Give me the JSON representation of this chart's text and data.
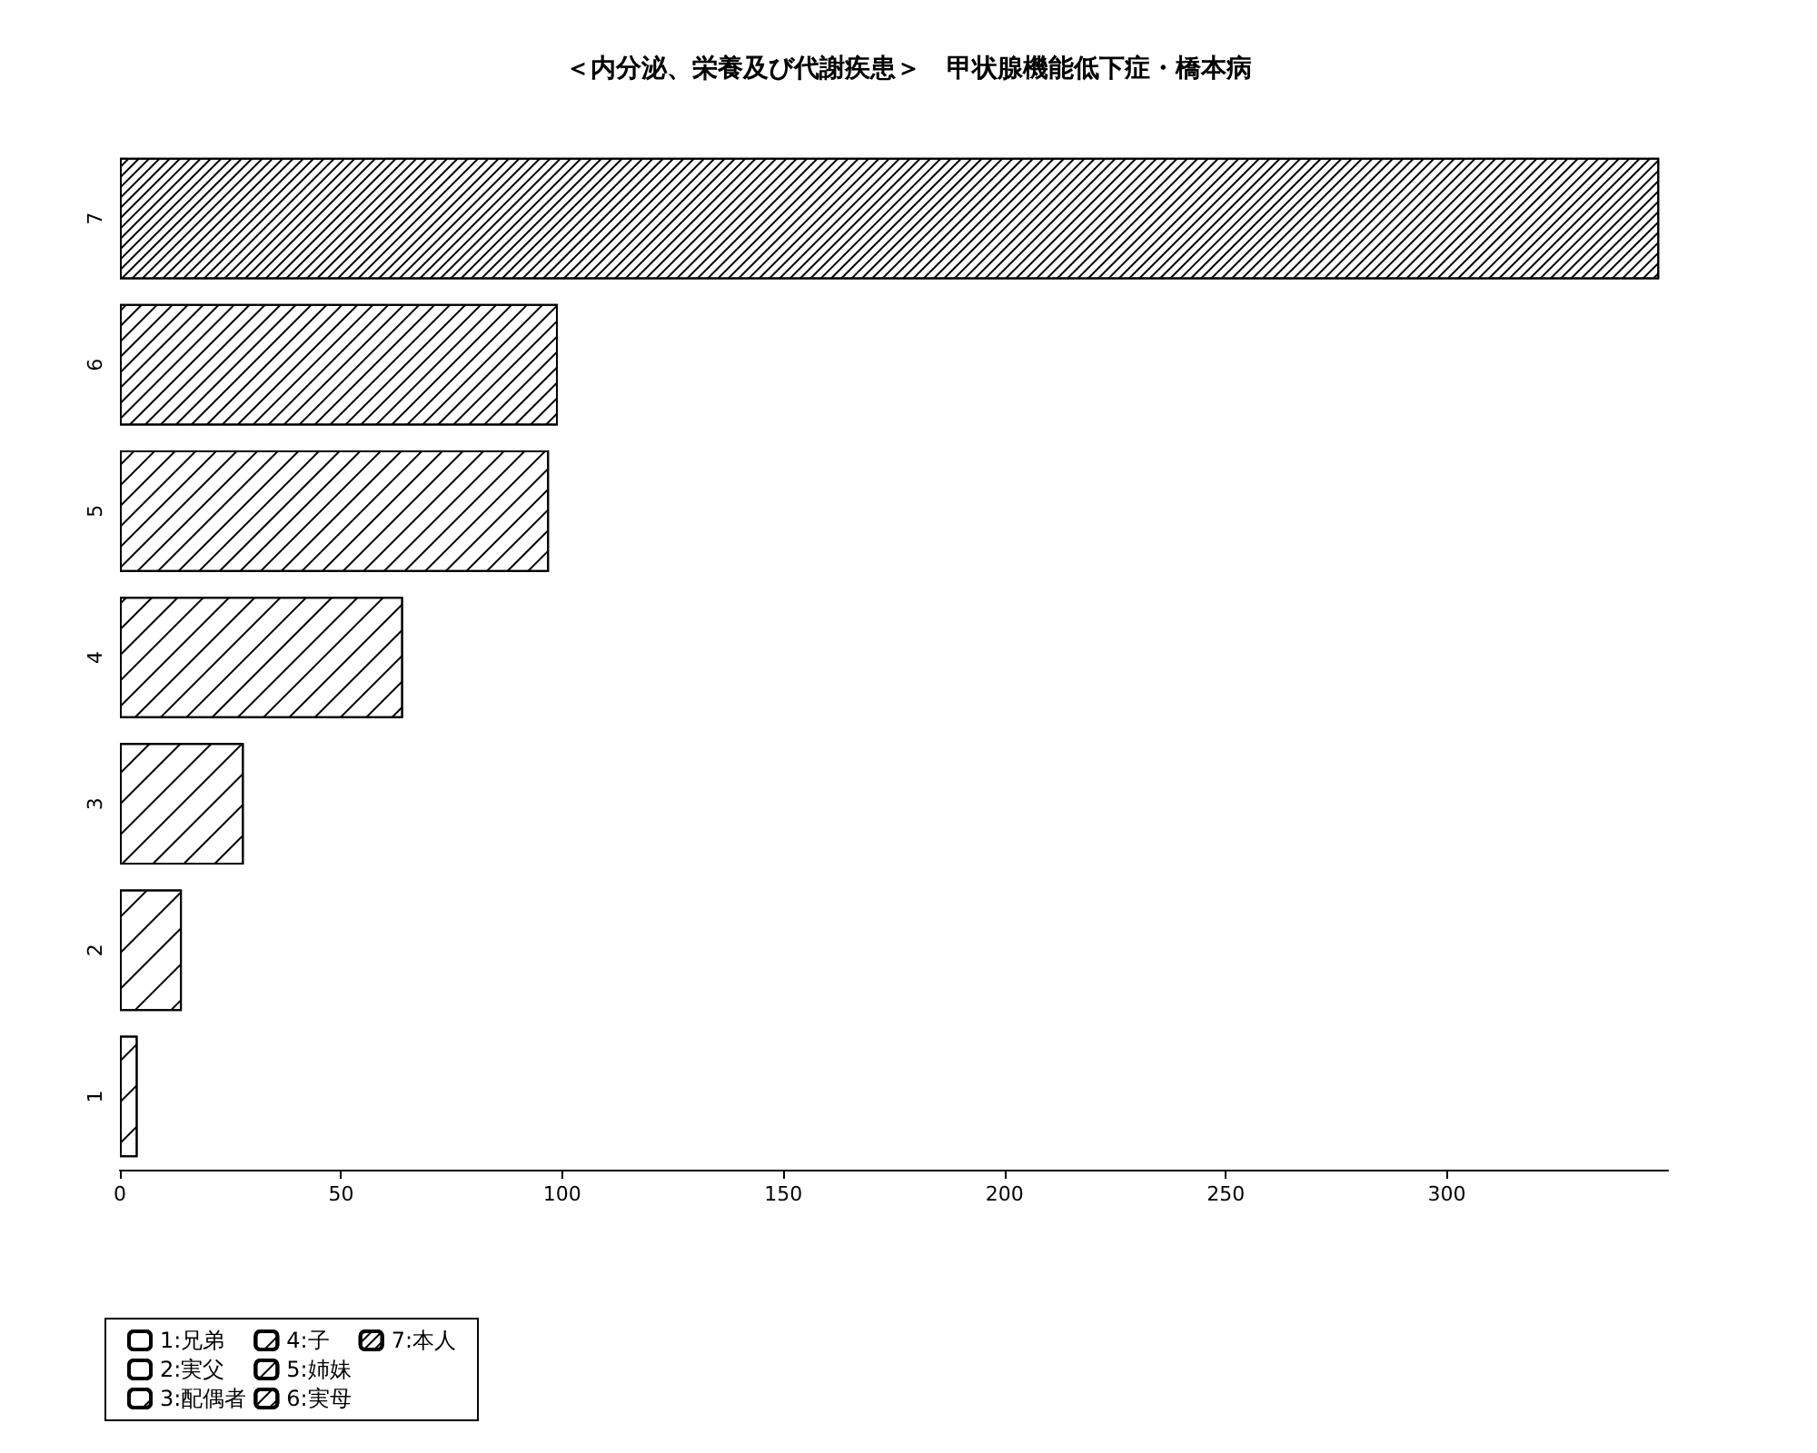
{
  "chart_data": {
    "type": "bar",
    "orientation": "horizontal",
    "title": "＜内分泌、栄養及び代謝疾患＞　甲状腺機能低下症・橋本病",
    "categories": [
      "7",
      "6",
      "5",
      "4",
      "3",
      "2",
      "1"
    ],
    "series": [
      {
        "name": "1:兄弟",
        "color": "#ffffff",
        "values": [
          null,
          null,
          null,
          null,
          null,
          null,
          4
        ]
      },
      {
        "name": "2:実父",
        "color": "#ffffff",
        "values": [
          null,
          null,
          null,
          null,
          null,
          14,
          null
        ]
      },
      {
        "name": "3:配偶者",
        "color": "#ffffff",
        "values": [
          null,
          null,
          null,
          null,
          28,
          null,
          null
        ]
      },
      {
        "name": "4:子",
        "color": "#ffffff",
        "values": [
          null,
          null,
          null,
          64,
          null,
          null,
          null
        ]
      },
      {
        "name": "5:姉妹",
        "color": "#ffffff",
        "values": [
          null,
          null,
          97,
          null,
          null,
          null,
          null
        ]
      },
      {
        "name": "6:実母",
        "color": "#ffffff",
        "values": [
          null,
          99,
          null,
          null,
          null,
          null,
          null
        ]
      },
      {
        "name": "7:本人",
        "color": "#ffffff",
        "values": [
          348,
          null,
          null,
          null,
          null,
          null,
          null
        ]
      }
    ],
    "xlim": [
      0,
      350
    ],
    "xticks": [
      0,
      50,
      100,
      150,
      200,
      250,
      300
    ],
    "grid": false,
    "legend": "bottom left"
  }
}
